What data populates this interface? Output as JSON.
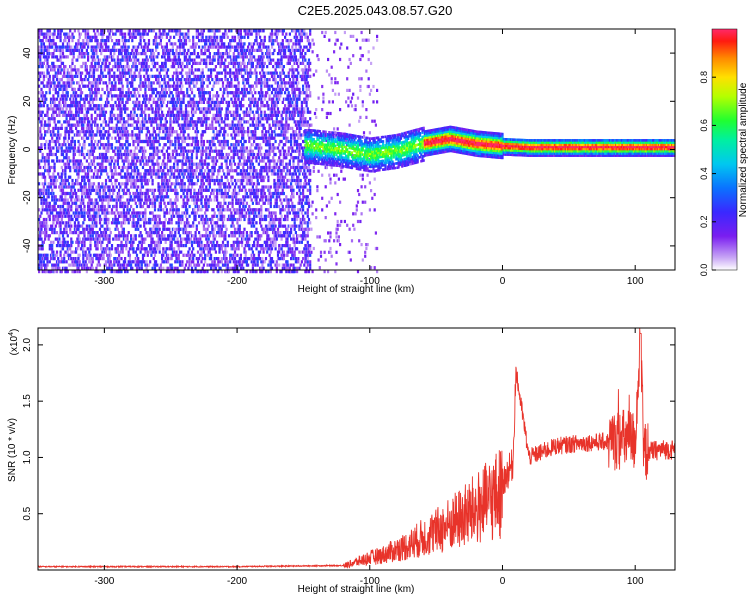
{
  "figure_title": "C2E5.2025.043.08.57.G20",
  "colors": {
    "snr_line": "#e8332a",
    "spectro_low": "#6a00ff",
    "spectro_mid": "#00ff80",
    "spectro_high": "#ff0000"
  },
  "chart_data": [
    {
      "type": "heatmap",
      "title": "",
      "xlabel": "Height of straight line (km)",
      "ylabel": "Frequency (Hz)",
      "xlim": [
        -350,
        130
      ],
      "ylim": [
        -50,
        50
      ],
      "x_ticks": [
        -300,
        -200,
        -100,
        0,
        100
      ],
      "y_ticks": [
        -40,
        -20,
        0,
        20,
        40
      ],
      "colorbar": {
        "label": "Normalized spectral amplitude",
        "range": [
          0.0,
          1.0
        ],
        "ticks": [
          0.0,
          0.2,
          0.4,
          0.6,
          0.8
        ],
        "tick_labels": [
          "0.0",
          "0.2",
          "0.4",
          "0.6",
          "0.8"
        ],
        "colormap": "rainbow (purple-blue-cyan-green-yellow-red)"
      },
      "features": {
        "noise_region_x": [
          -350,
          -145
        ],
        "noise_sparse_x": [
          -145,
          -95
        ],
        "tone_center_hz": [
          {
            "x": -145,
            "f": 2.0
          },
          {
            "x": -120,
            "f": 0.5
          },
          {
            "x": -100,
            "f": -1.5
          },
          {
            "x": -80,
            "f": 0.0
          },
          {
            "x": -60,
            "f": 3.0
          },
          {
            "x": -40,
            "f": 5.0
          },
          {
            "x": -20,
            "f": 3.0
          },
          {
            "x": 0,
            "f": 2.0
          },
          {
            "x": 20,
            "f": 1.5
          },
          {
            "x": 60,
            "f": 1.5
          },
          {
            "x": 130,
            "f": 1.5
          }
        ]
      }
    },
    {
      "type": "line",
      "title": "",
      "xlabel": "Height of straight line (km)",
      "ylabel": "SNR (10 * v/v)",
      "y_multiplier": "(x10",
      "y_multiplier_exp": "4",
      "y_multiplier_close": ")",
      "xlim": [
        -350,
        130
      ],
      "ylim": [
        0,
        2.15
      ],
      "x_ticks": [
        -300,
        -200,
        -100,
        0,
        100
      ],
      "y_ticks": [
        0.5,
        1.0,
        1.5,
        2.0
      ],
      "y_tick_labels": [
        "0.5",
        "1.0",
        "1.5",
        "2.0"
      ],
      "series": [
        {
          "color": "#e8332a",
          "x": [
            -350,
            -300,
            -200,
            -120,
            -110,
            -100,
            -90,
            -80,
            -70,
            -60,
            -50,
            -40,
            -30,
            -20,
            -10,
            0,
            8,
            10,
            20,
            30,
            40,
            60,
            80,
            90,
            100,
            104,
            106,
            110,
            120,
            130
          ],
          "y": [
            0.03,
            0.03,
            0.03,
            0.04,
            0.08,
            0.12,
            0.15,
            0.2,
            0.25,
            0.32,
            0.38,
            0.45,
            0.52,
            0.6,
            0.68,
            0.78,
            0.95,
            1.78,
            1.0,
            1.05,
            1.1,
            1.13,
            1.14,
            1.16,
            1.15,
            2.1,
            1.05,
            1.05,
            1.07,
            1.07
          ]
        }
      ]
    }
  ]
}
